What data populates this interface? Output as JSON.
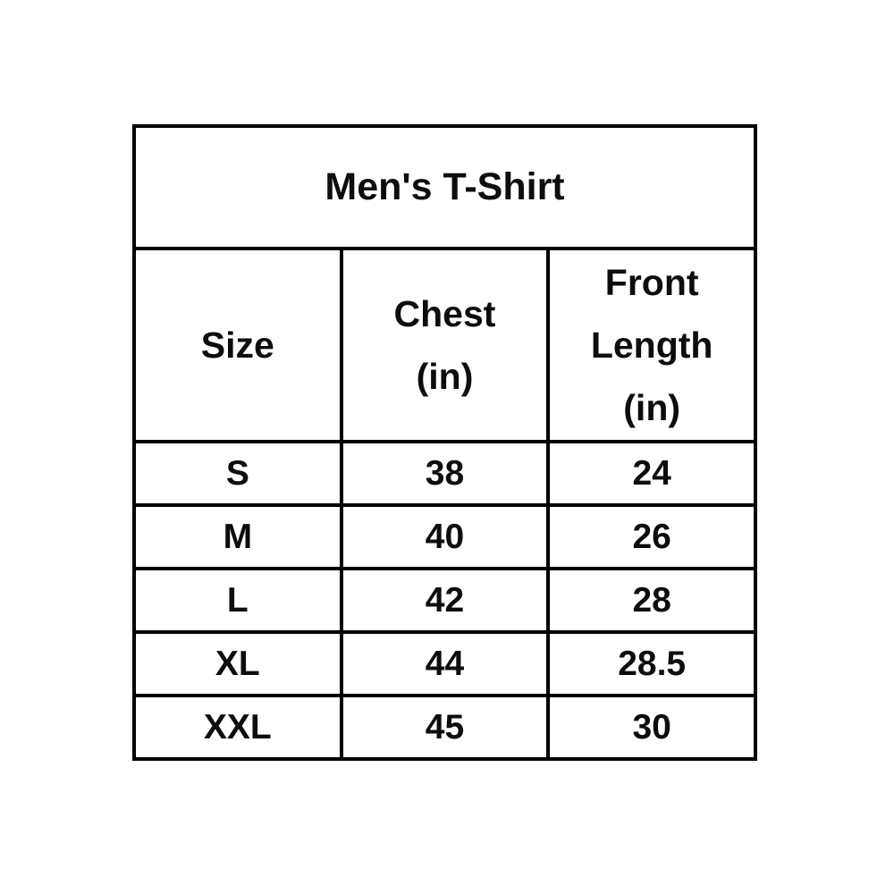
{
  "page": {
    "background_color": "#ffffff",
    "border_color": "#000000",
    "text_color": "#0d0d0d"
  },
  "size_chart": {
    "title": "Men's T-Shirt",
    "columns": {
      "size": "Size",
      "chest": "Chest\n(in)",
      "front_length": "Front\nLength\n(in)"
    },
    "rows": [
      {
        "size": "S",
        "chest": "38",
        "front_length": "24"
      },
      {
        "size": "M",
        "chest": "40",
        "front_length": "26"
      },
      {
        "size": "L",
        "chest": "42",
        "front_length": "28"
      },
      {
        "size": "XL",
        "chest": "44",
        "front_length": "28.5"
      },
      {
        "size": "XXL",
        "chest": "45",
        "front_length": "30"
      }
    ]
  }
}
